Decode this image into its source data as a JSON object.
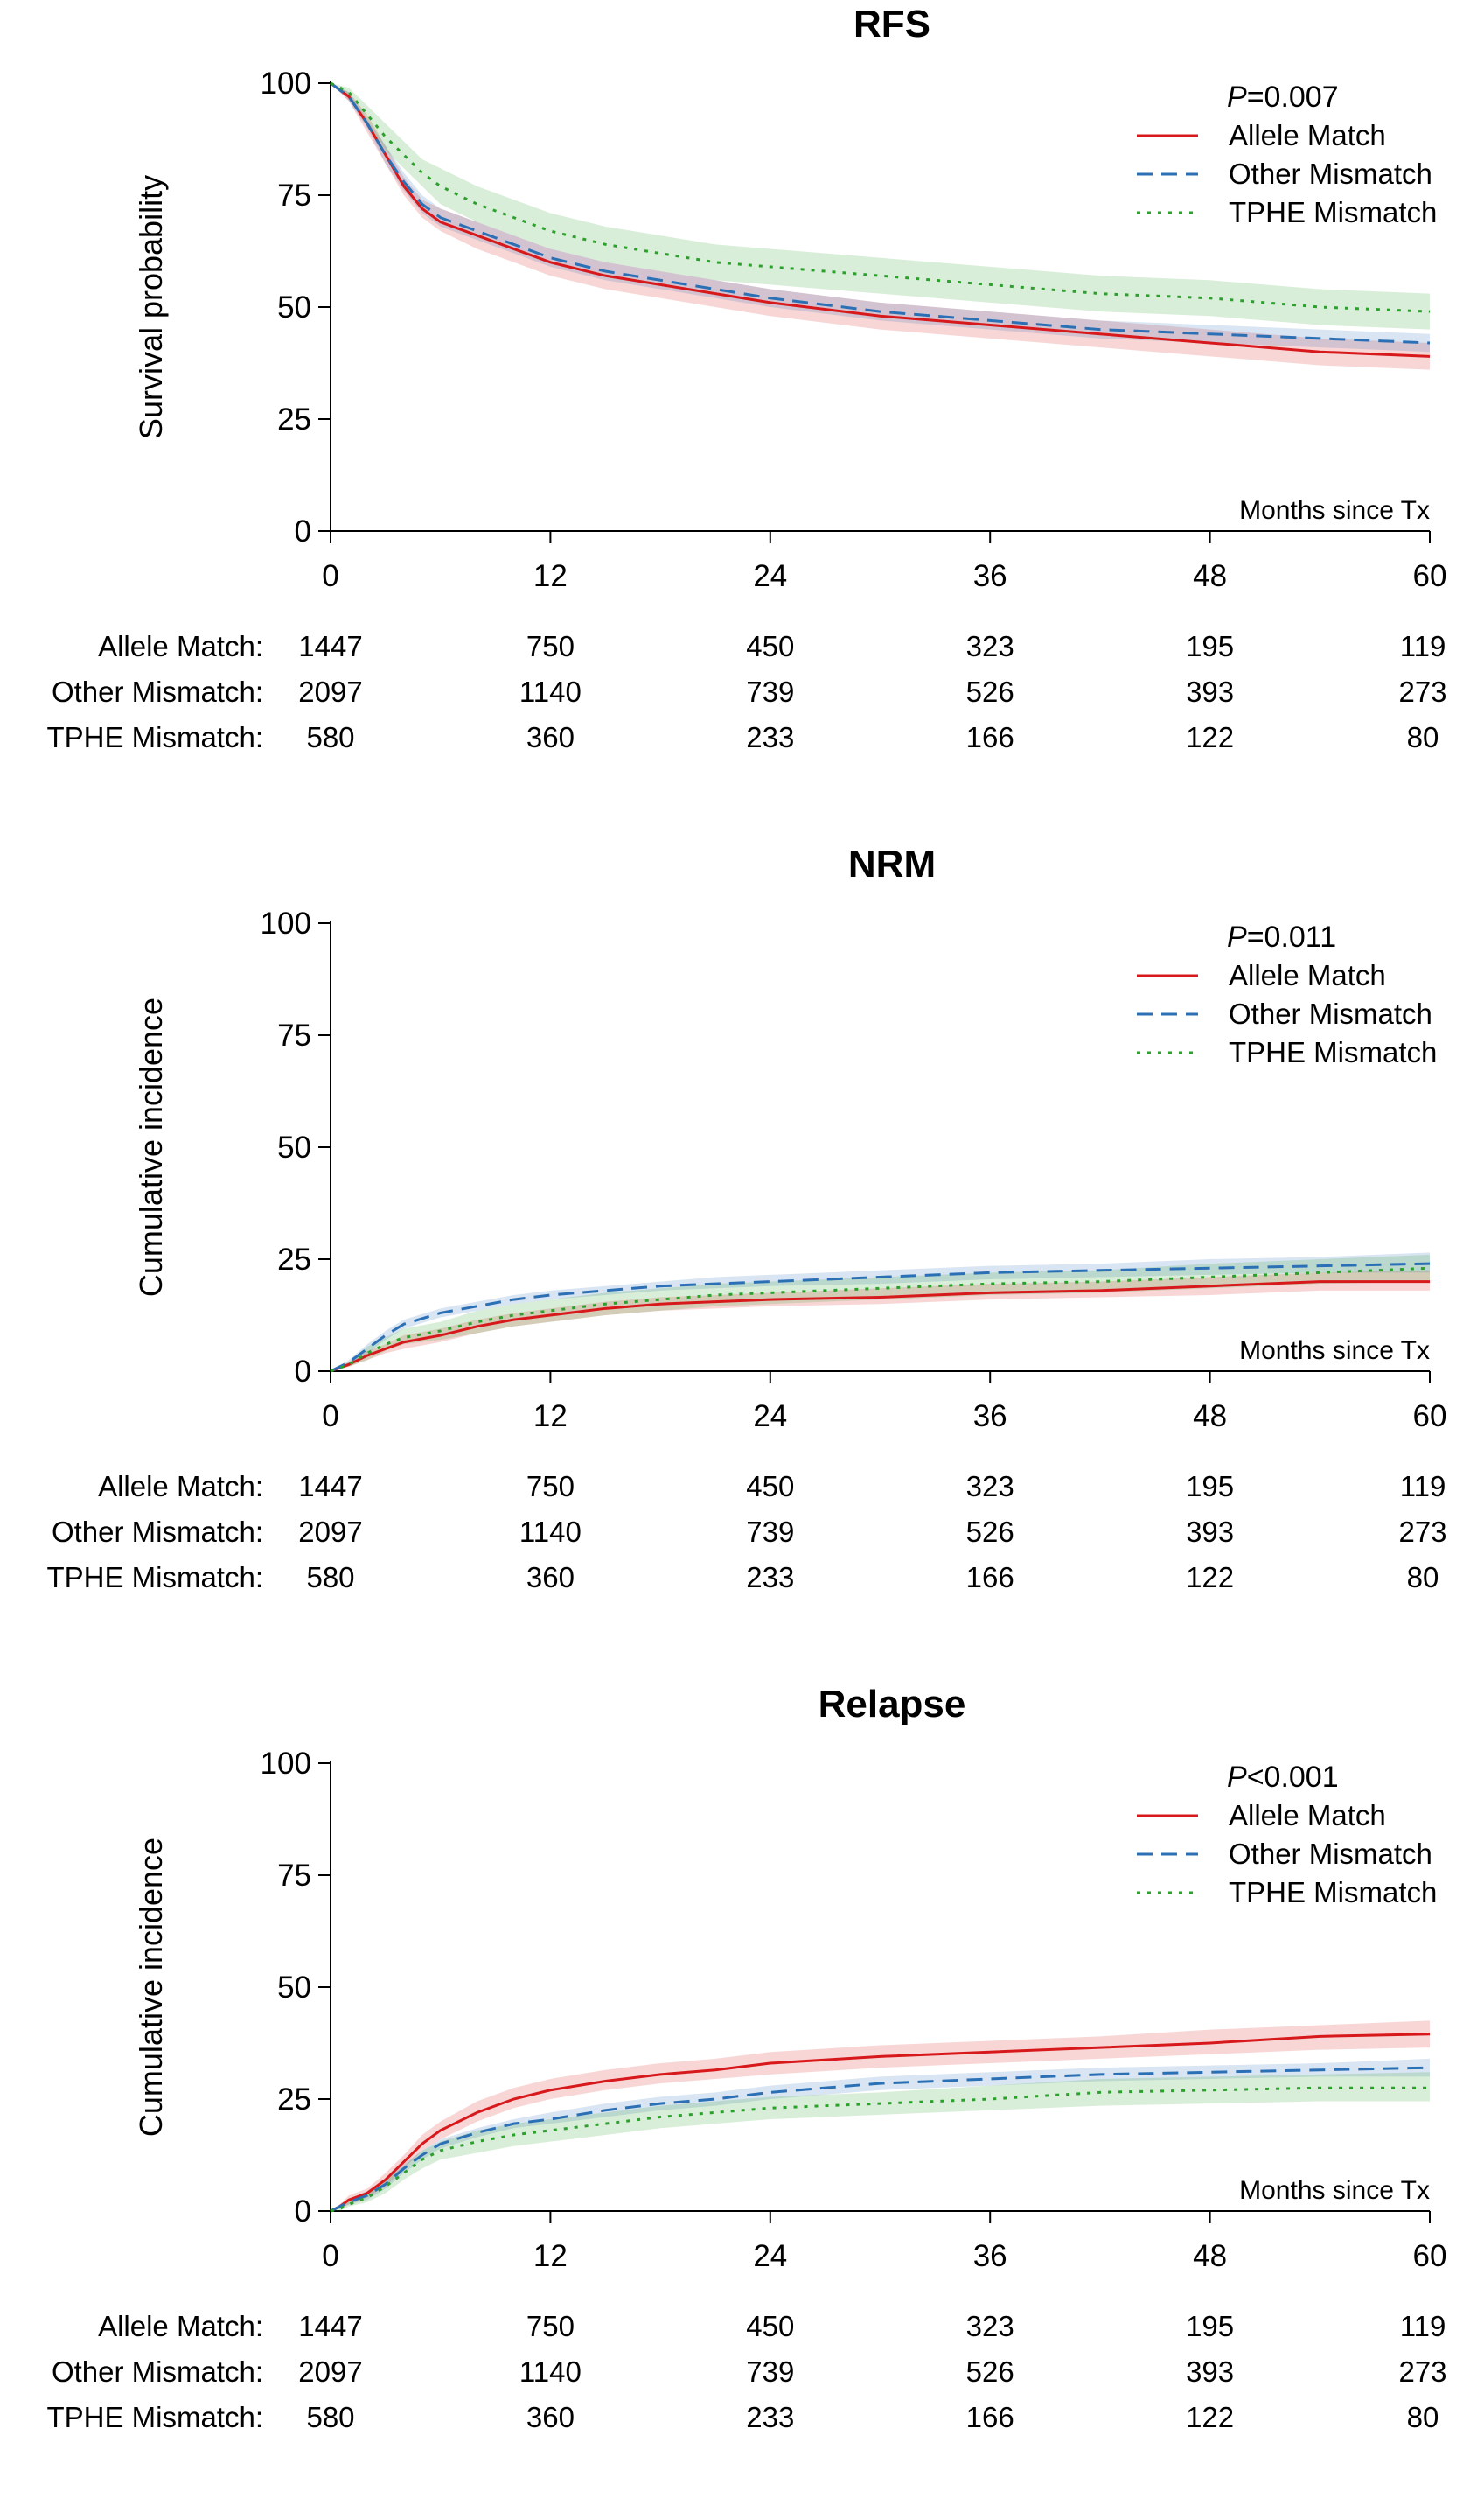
{
  "chart_data": [
    {
      "type": "line",
      "title": "RFS",
      "ylabel": "Survival probability",
      "xlabel": "Months since Tx",
      "pvalue_prefix": "P",
      "pvalue_rest": "=0.007",
      "xlim": [
        0,
        60
      ],
      "ylim": [
        0,
        100
      ],
      "xticks": [
        0,
        12,
        24,
        36,
        48,
        60
      ],
      "yticks": [
        0,
        25,
        50,
        75,
        100
      ],
      "legend_position": "top-right",
      "series": [
        {
          "name": "Allele Match",
          "color": "#d7191c",
          "style": "solid",
          "x": [
            0,
            1,
            2,
            3,
            4,
            5,
            6,
            8,
            10,
            12,
            15,
            18,
            21,
            24,
            30,
            36,
            42,
            48,
            54,
            60
          ],
          "y": [
            100,
            97,
            91,
            84,
            77,
            72,
            69,
            66,
            63,
            60,
            57,
            55,
            53,
            51,
            48,
            46,
            44,
            42,
            40,
            39
          ],
          "ci_lower": [
            100,
            96,
            89,
            82,
            75,
            70,
            67,
            63,
            60,
            57,
            54,
            52,
            50,
            48,
            45,
            43,
            41,
            39,
            37,
            36
          ],
          "ci_upper": [
            100,
            98,
            93,
            86,
            79,
            74,
            72,
            69,
            66,
            63,
            60,
            58,
            56,
            54,
            51,
            49,
            47,
            45,
            43,
            42
          ]
        },
        {
          "name": "Other Mismatch",
          "color": "#2b6fb5",
          "style": "dashed",
          "x": [
            0,
            1,
            2,
            3,
            4,
            5,
            6,
            8,
            10,
            12,
            15,
            18,
            21,
            24,
            30,
            36,
            42,
            48,
            54,
            60
          ],
          "y": [
            100,
            97,
            91,
            84,
            78,
            73,
            70,
            67,
            64,
            61,
            58,
            56,
            54,
            52,
            49,
            47,
            45,
            44,
            43,
            42
          ],
          "ci_lower": [
            100,
            96,
            90,
            82,
            76,
            71,
            68,
            65,
            62,
            59,
            56,
            54,
            52,
            50,
            47,
            45,
            43,
            42,
            41,
            40
          ],
          "ci_upper": [
            100,
            98,
            92,
            86,
            80,
            75,
            72,
            69,
            66,
            63,
            60,
            58,
            56,
            54,
            51,
            49,
            47,
            46,
            45,
            44
          ]
        },
        {
          "name": "TPHE Mismatch",
          "color": "#2ca02c",
          "style": "dotted",
          "x": [
            0,
            1,
            2,
            3,
            4,
            5,
            6,
            8,
            10,
            12,
            15,
            18,
            21,
            24,
            30,
            36,
            42,
            48,
            54,
            60
          ],
          "y": [
            100,
            98,
            93,
            88,
            84,
            80,
            77,
            73,
            70,
            67,
            64,
            62,
            60,
            59,
            57,
            55,
            53,
            52,
            50,
            49
          ],
          "ci_lower": [
            100,
            97,
            91,
            85,
            81,
            77,
            73,
            69,
            66,
            63,
            60,
            58,
            56,
            55,
            53,
            51,
            49,
            48,
            46,
            45
          ],
          "ci_upper": [
            100,
            99,
            95,
            91,
            87,
            83,
            81,
            77,
            74,
            71,
            68,
            66,
            64,
            63,
            61,
            59,
            57,
            56,
            54,
            53
          ]
        }
      ],
      "risk_table": {
        "times": [
          0,
          12,
          24,
          36,
          48,
          60
        ],
        "rows": [
          {
            "label": "Allele Match:",
            "counts": [
              "1447",
              "750",
              "450",
              "323",
              "195",
              "119"
            ]
          },
          {
            "label": "Other Mismatch:",
            "counts": [
              "2097",
              "1140",
              "739",
              "526",
              "393",
              "273"
            ]
          },
          {
            "label": "TPHE Mismatch:",
            "counts": [
              "580",
              "360",
              "233",
              "166",
              "122",
              "80"
            ]
          }
        ]
      }
    },
    {
      "type": "line",
      "title": "NRM",
      "ylabel": "Cumulative incidence",
      "xlabel": "Months since Tx",
      "pvalue_prefix": "P",
      "pvalue_rest": "=0.011",
      "xlim": [
        0,
        60
      ],
      "ylim": [
        0,
        100
      ],
      "xticks": [
        0,
        12,
        24,
        36,
        48,
        60
      ],
      "yticks": [
        0,
        25,
        50,
        75,
        100
      ],
      "legend_position": "top-right",
      "series": [
        {
          "name": "Allele Match",
          "color": "#d7191c",
          "style": "solid",
          "x": [
            0,
            1,
            2,
            3,
            4,
            6,
            8,
            10,
            12,
            15,
            18,
            21,
            24,
            30,
            36,
            42,
            48,
            54,
            60
          ],
          "y": [
            0,
            1.5,
            3.5,
            5,
            6.5,
            8,
            10,
            11.5,
            12.5,
            14,
            15,
            15.5,
            16,
            16.5,
            17.5,
            18,
            19,
            20,
            20
          ],
          "ci_lower": [
            0,
            1,
            2.5,
            4,
            5,
            6.5,
            8.5,
            10,
            11,
            12.5,
            13.5,
            14,
            14.5,
            15,
            16,
            16.5,
            17,
            18,
            18
          ],
          "ci_upper": [
            0,
            2,
            4.5,
            6,
            8,
            9.5,
            11.5,
            13,
            14,
            15.5,
            16.5,
            17,
            17.5,
            18.5,
            19.5,
            20,
            21,
            22,
            22.5
          ]
        },
        {
          "name": "Other Mismatch",
          "color": "#2b6fb5",
          "style": "dashed",
          "x": [
            0,
            1,
            2,
            3,
            4,
            6,
            8,
            10,
            12,
            15,
            18,
            21,
            24,
            30,
            36,
            42,
            48,
            54,
            60
          ],
          "y": [
            0,
            2,
            5,
            8,
            10.5,
            13,
            14.5,
            16,
            17,
            18,
            19,
            19.5,
            20,
            21,
            22,
            22.5,
            23,
            23.5,
            24
          ],
          "ci_lower": [
            0,
            1.5,
            4,
            7,
            9.5,
            12,
            13.5,
            15,
            16,
            17,
            18,
            18.5,
            19,
            19.5,
            20.5,
            21,
            21.5,
            22,
            22
          ],
          "ci_upper": [
            0,
            2.5,
            6,
            9,
            11.5,
            14,
            15.5,
            17,
            18,
            19,
            20,
            21,
            21.5,
            22.5,
            23.5,
            24,
            25,
            25.5,
            26.5
          ]
        },
        {
          "name": "TPHE Mismatch",
          "color": "#2ca02c",
          "style": "dotted",
          "x": [
            0,
            1,
            2,
            3,
            4,
            6,
            8,
            10,
            12,
            15,
            18,
            21,
            24,
            30,
            36,
            42,
            48,
            54,
            60
          ],
          "y": [
            0,
            1.5,
            4,
            6,
            7.5,
            9,
            11,
            12.5,
            13.5,
            15,
            16,
            17,
            17.5,
            18.5,
            19.5,
            20,
            21,
            22,
            23
          ],
          "ci_lower": [
            0,
            1,
            2.5,
            4.5,
            6,
            7,
            8.5,
            10,
            11,
            12.5,
            13.5,
            14.5,
            15,
            16,
            17,
            17.5,
            18.5,
            19.5,
            20
          ],
          "ci_upper": [
            0,
            2,
            5.5,
            7.5,
            9.5,
            11,
            13.5,
            15,
            16,
            17.5,
            18.5,
            19.5,
            20,
            21,
            22,
            22.5,
            24,
            25,
            26
          ]
        }
      ],
      "risk_table": {
        "times": [
          0,
          12,
          24,
          36,
          48,
          60
        ],
        "rows": [
          {
            "label": "Allele Match:",
            "counts": [
              "1447",
              "750",
              "450",
              "323",
              "195",
              "119"
            ]
          },
          {
            "label": "Other Mismatch:",
            "counts": [
              "2097",
              "1140",
              "739",
              "526",
              "393",
              "273"
            ]
          },
          {
            "label": "TPHE Mismatch:",
            "counts": [
              "580",
              "360",
              "233",
              "166",
              "122",
              "80"
            ]
          }
        ]
      }
    },
    {
      "type": "line",
      "title": "Relapse",
      "ylabel": "Cumulative incidence",
      "xlabel": "Months since Tx",
      "pvalue_prefix": "P",
      "pvalue_rest": "<0.001",
      "xlim": [
        0,
        60
      ],
      "ylim": [
        0,
        100
      ],
      "xticks": [
        0,
        12,
        24,
        36,
        48,
        60
      ],
      "yticks": [
        0,
        25,
        50,
        75,
        100
      ],
      "legend_position": "top-right",
      "series": [
        {
          "name": "Allele Match",
          "color": "#d7191c",
          "style": "solid",
          "x": [
            0,
            0.5,
            1,
            2,
            3,
            4,
            5,
            6,
            8,
            10,
            12,
            15,
            18,
            21,
            24,
            30,
            36,
            42,
            48,
            54,
            60
          ],
          "y": [
            0,
            1,
            2.5,
            4,
            7,
            11,
            15,
            18,
            22,
            25,
            27,
            29,
            30.5,
            31.5,
            33,
            34.5,
            35.5,
            36.5,
            37.5,
            39,
            39.5
          ],
          "ci_lower": [
            0,
            0.5,
            1.5,
            3,
            5.5,
            9.5,
            13.5,
            16,
            20,
            23,
            25,
            27,
            28.5,
            29.5,
            30.5,
            32,
            33,
            34,
            35,
            36,
            36.5
          ],
          "ci_upper": [
            0,
            1.5,
            3.5,
            5,
            8.5,
            12.5,
            17,
            20,
            24.5,
            27.5,
            29.5,
            31.5,
            33,
            34,
            35.5,
            37,
            38,
            39,
            40.5,
            41.5,
            42.5
          ]
        },
        {
          "name": "Other Mismatch",
          "color": "#2b6fb5",
          "style": "dashed",
          "x": [
            0,
            0.5,
            1,
            2,
            3,
            4,
            5,
            6,
            8,
            10,
            12,
            15,
            18,
            21,
            24,
            30,
            36,
            42,
            48,
            54,
            60
          ],
          "y": [
            0,
            1,
            2,
            3.5,
            6,
            9.5,
            12.5,
            15,
            17.5,
            19.5,
            20.5,
            22.5,
            24,
            25,
            26.5,
            28.5,
            29.5,
            30.5,
            31,
            31.5,
            32
          ],
          "ci_lower": [
            0,
            0.5,
            1.5,
            2.5,
            5,
            8.5,
            11.5,
            14,
            16.5,
            18.5,
            19.5,
            21,
            22.5,
            23.5,
            25,
            27,
            28,
            29,
            29.5,
            30,
            30
          ],
          "ci_upper": [
            0,
            1.5,
            2.5,
            4.5,
            7,
            10.5,
            13.5,
            16,
            18.5,
            20.5,
            22,
            24,
            25.5,
            26.5,
            28,
            30,
            31,
            32,
            32.5,
            33,
            34
          ]
        },
        {
          "name": "TPHE Mismatch",
          "color": "#2ca02c",
          "style": "dotted",
          "x": [
            0,
            0.5,
            1,
            2,
            3,
            4,
            5,
            6,
            8,
            10,
            12,
            15,
            18,
            21,
            24,
            30,
            36,
            42,
            48,
            54,
            60
          ],
          "y": [
            0,
            0.5,
            1.5,
            3,
            5.5,
            8.5,
            11.5,
            13.5,
            15.5,
            17,
            18,
            19.5,
            21,
            22,
            23,
            24,
            25,
            26.5,
            27,
            27.5,
            27.5
          ],
          "ci_lower": [
            0,
            0,
            1,
            2,
            4,
            7,
            9.5,
            11.5,
            13,
            14.5,
            15.5,
            17,
            18.5,
            19.5,
            20.5,
            21.5,
            22.5,
            23.5,
            24,
            24.5,
            24.5
          ],
          "ci_upper": [
            0,
            1,
            2.5,
            4,
            7,
            10,
            13.5,
            15.5,
            18,
            19.5,
            20.5,
            22,
            23.5,
            24.5,
            25.5,
            26.5,
            28,
            29.5,
            30,
            30.5,
            31
          ]
        }
      ],
      "risk_table": {
        "times": [
          0,
          12,
          24,
          36,
          48,
          60
        ],
        "rows": [
          {
            "label": "Allele Match:",
            "counts": [
              "1447",
              "750",
              "450",
              "323",
              "195",
              "119"
            ]
          },
          {
            "label": "Other Mismatch:",
            "counts": [
              "2097",
              "1140",
              "739",
              "526",
              "393",
              "273"
            ]
          },
          {
            "label": "TPHE Mismatch:",
            "counts": [
              "580",
              "360",
              "233",
              "166",
              "122",
              "80"
            ]
          }
        ]
      }
    }
  ]
}
